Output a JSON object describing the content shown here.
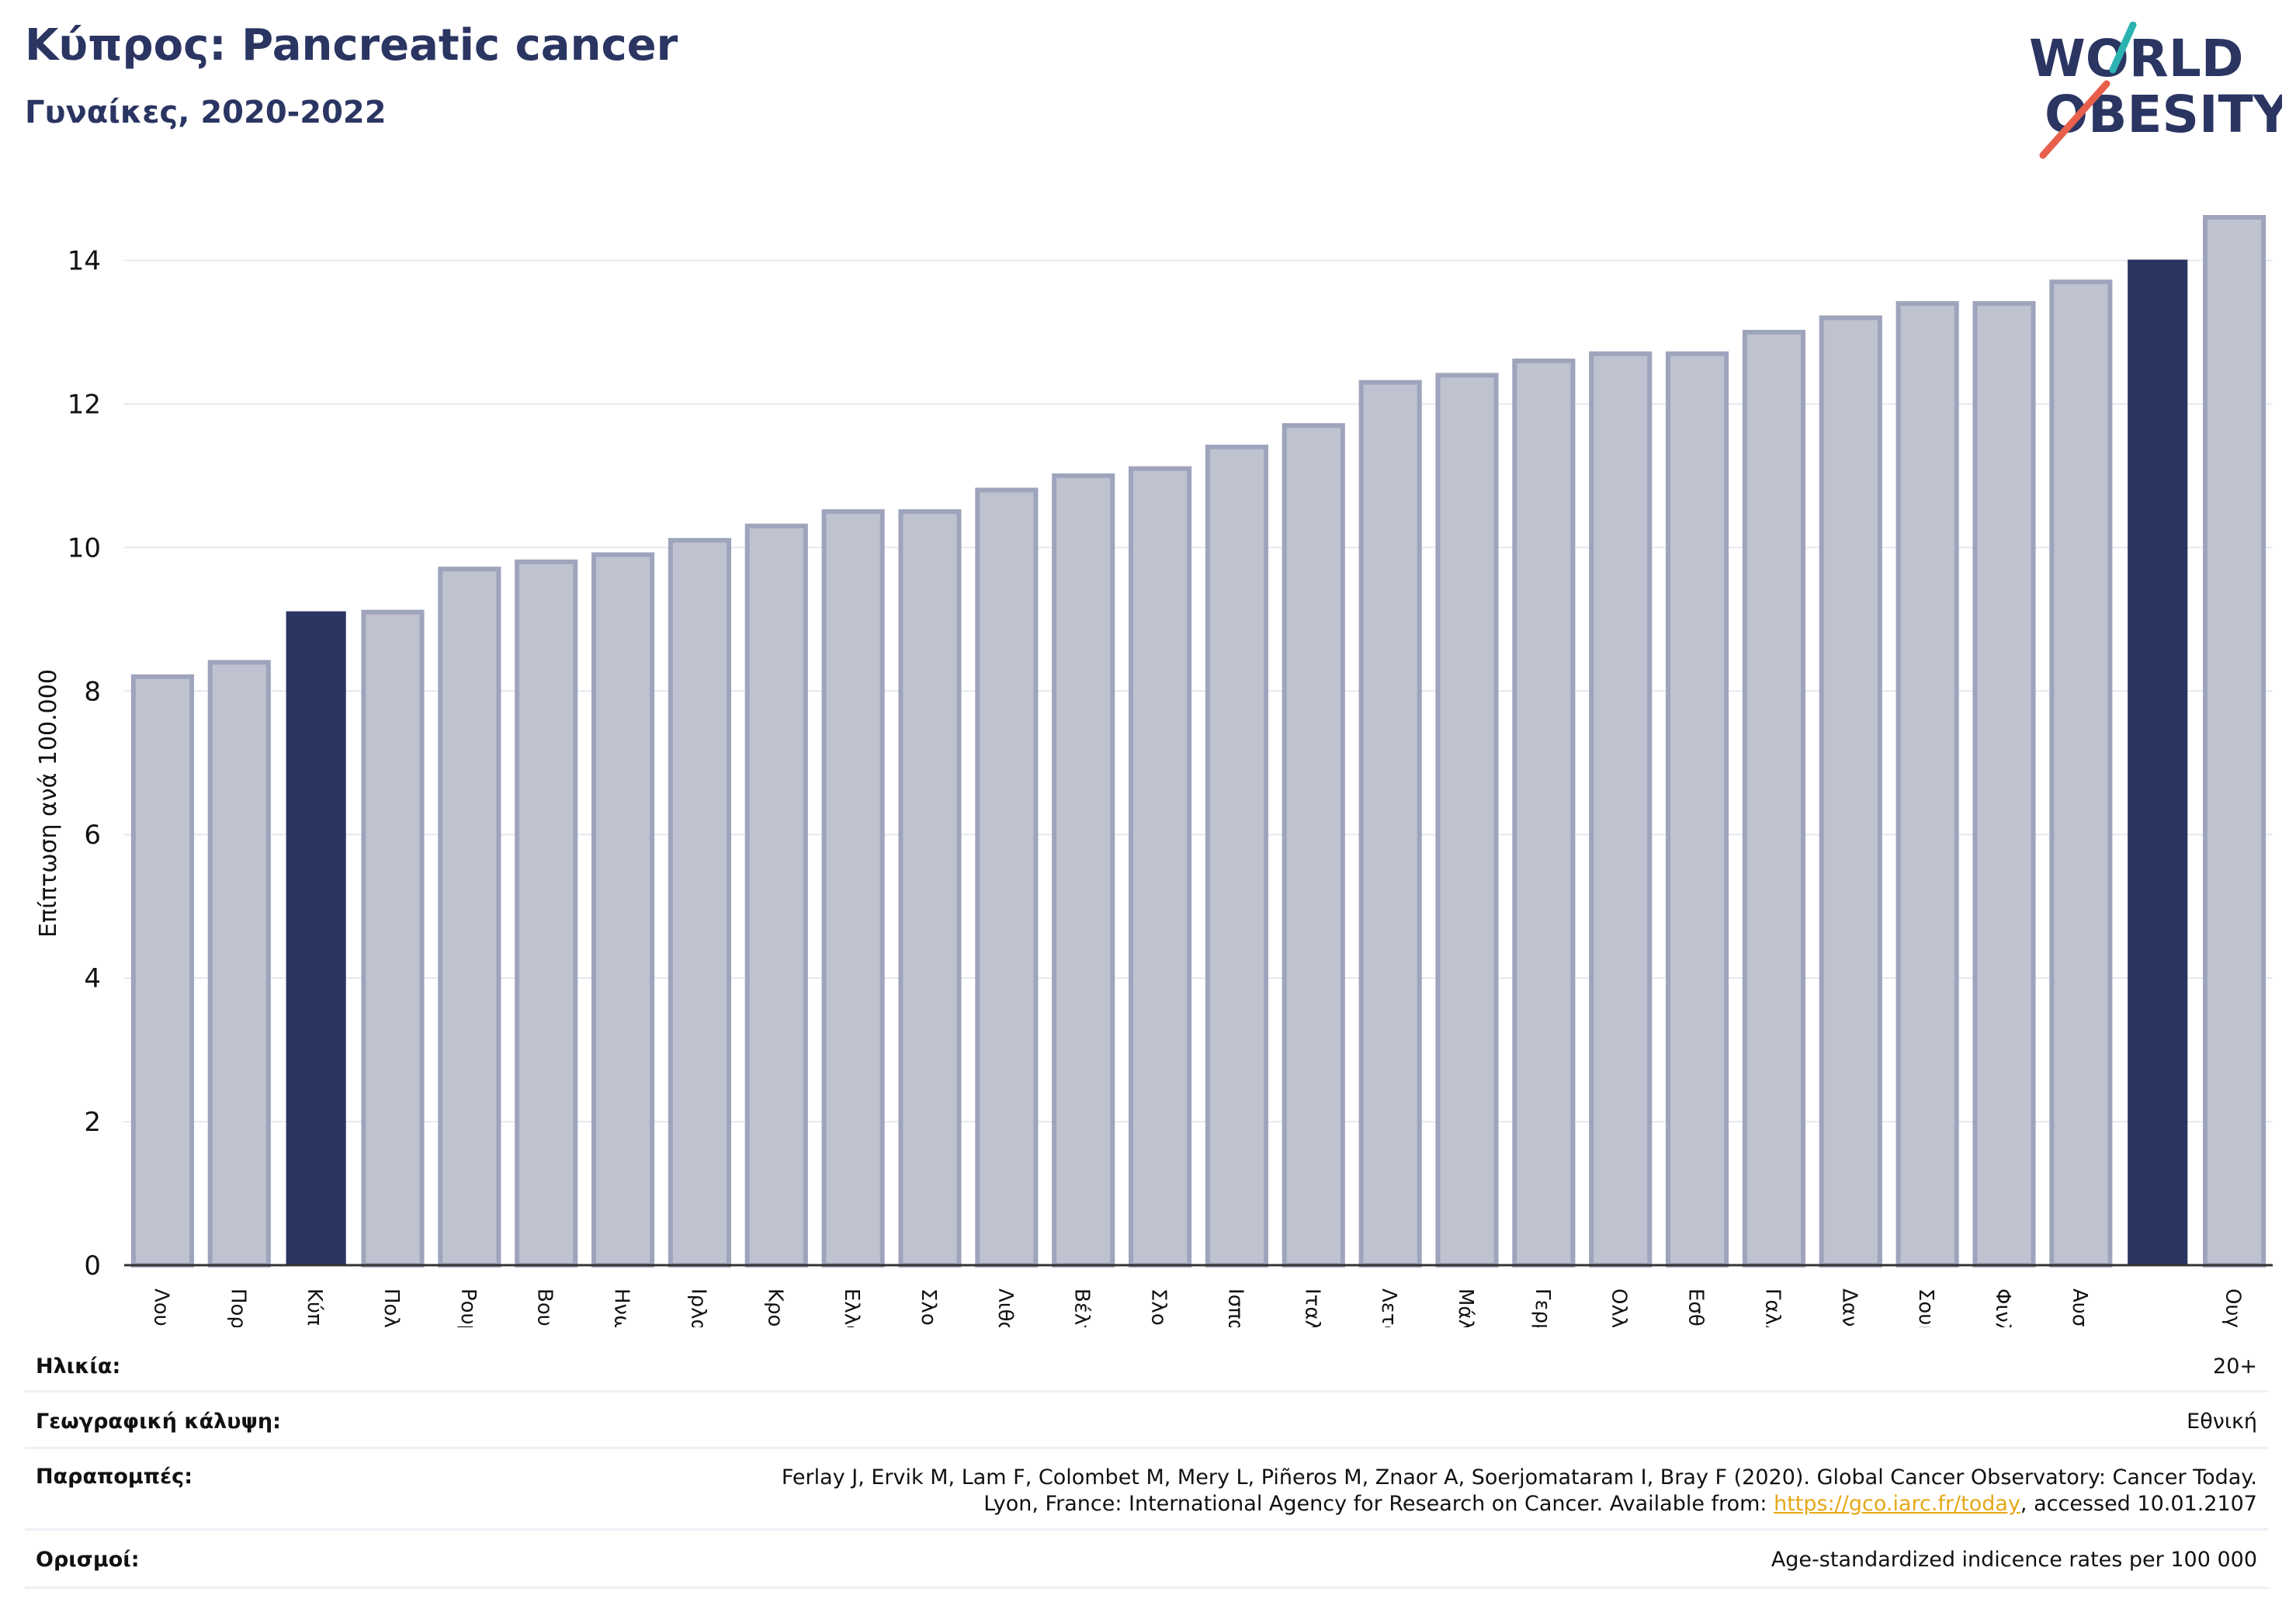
{
  "header": {
    "title": "Κύπρος: Pancreatic cancer",
    "subtitle": "Γυναίκες, 2020-2022"
  },
  "logo": {
    "line1": "WORLD",
    "line2": "OBESITY",
    "colors": {
      "text": "#2b3562",
      "slash_teal": "#2bb3b1",
      "slash_coral": "#e8604c"
    }
  },
  "chart_data": {
    "type": "bar",
    "ylabel": "Επίπτωση ανά 100.000",
    "xlabel": "",
    "ylim": [
      0,
      15
    ],
    "yticks": [
      0,
      2,
      4,
      6,
      8,
      10,
      12,
      14
    ],
    "grid": "horizontal",
    "categories": [
      "Λουξεμβούργο",
      "Πορτογαλία",
      "Κύπρος",
      "Πολωνία",
      "Ρουμανία",
      "Βουλγαρία",
      "Ηνωμένο Βασίλειο",
      "Ιρλανδία",
      "Κροατία",
      "Ελλάδα",
      "Σλοβενία",
      "Λιθουανία",
      "Βέλγιο",
      "Σλοβακία",
      "Ισπανία",
      "Ιταλία",
      "Λετονία",
      "Μάλτα",
      "Γερμανία",
      "Ολλανδία",
      "Εσθονία",
      "Γαλλία",
      "Δανία",
      "Σουηδία",
      "Φινλανδία",
      "Αυστρία",
      "",
      "Ουγγαρία"
    ],
    "values": [
      8.2,
      8.4,
      9.1,
      9.1,
      9.7,
      9.8,
      9.9,
      10.1,
      10.3,
      10.5,
      10.5,
      10.8,
      11.0,
      11.1,
      11.4,
      11.7,
      12.3,
      12.4,
      12.6,
      12.7,
      12.7,
      13.0,
      13.2,
      13.4,
      13.4,
      13.7,
      14.0,
      14.6
    ],
    "highlighted": [
      2,
      26
    ],
    "colors": {
      "bar": "#bfc2cf",
      "bar_edge": "#9fa4bd",
      "highlight": "#2b3562",
      "grid": "#e6e8f0",
      "axis": "#333333"
    }
  },
  "info": {
    "age_label": "Ηλικία:",
    "age_value": "20+",
    "coverage_label": "Γεωγραφική κάλυψη:",
    "coverage_value": "Εθνική",
    "refs_label": "Παραπομπές:",
    "refs_line1": "Ferlay J, Ervik M, Lam F, Colombet M, Mery L, Piñeros M, Znaor A, Soerjomataram I, Bray F (2020). Global Cancer Observatory: Cancer Today.",
    "refs_line2_pre": "Lyon, France: International Agency for Research on Cancer. Available from: ",
    "refs_link": "https://gco.iarc.fr/today",
    "refs_line2_post": ", accessed 10.01.2107",
    "defs_label": "Ορισμοί:",
    "defs_value": "Age-standardized indicence rates per 100 000"
  }
}
